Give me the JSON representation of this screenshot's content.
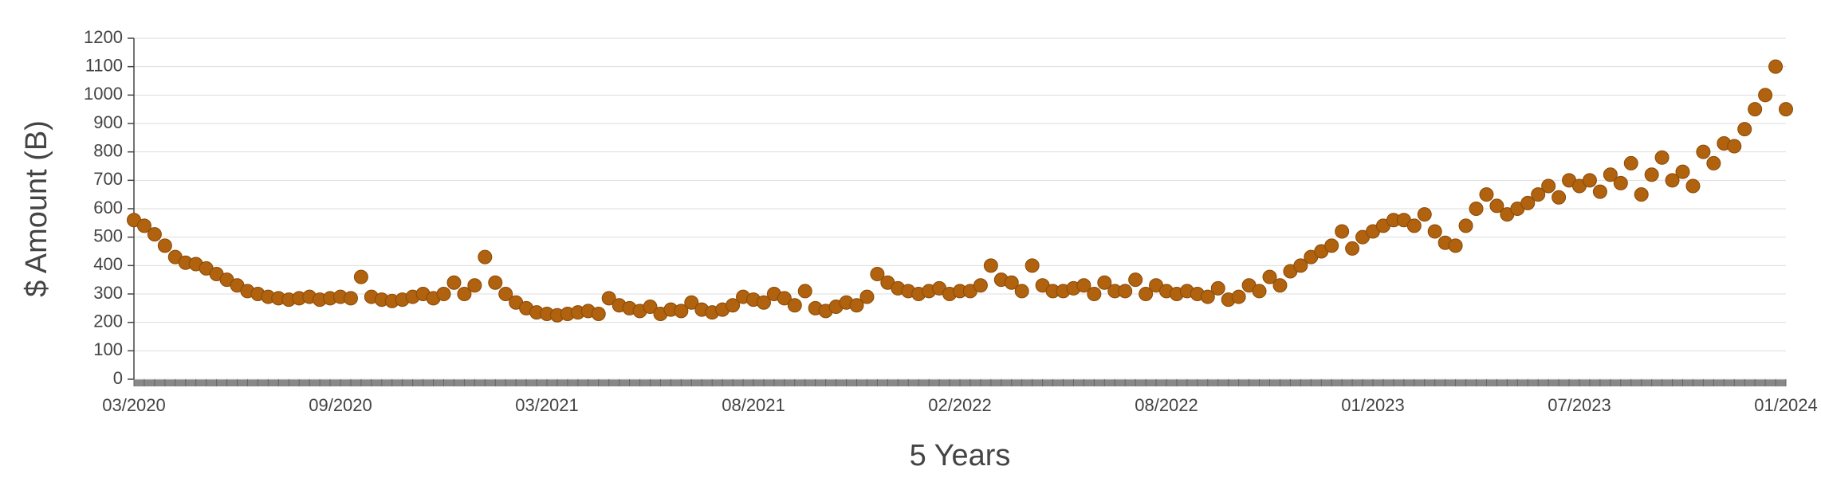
{
  "chart_data": {
    "type": "scatter",
    "x_label": "5 Years",
    "y_label": "$ Amount (B)",
    "color": "#b0620e",
    "grid": true,
    "ylim": [
      0,
      1200
    ],
    "yticks": [
      0,
      100,
      200,
      300,
      400,
      500,
      600,
      700,
      800,
      900,
      1000,
      1100,
      1200
    ],
    "categories": [
      "03/2020",
      null,
      null,
      null,
      null,
      null,
      null,
      null,
      null,
      null,
      null,
      null,
      null,
      null,
      null,
      null,
      null,
      null,
      null,
      null,
      "09/2020",
      null,
      null,
      null,
      null,
      null,
      null,
      null,
      null,
      null,
      null,
      null,
      null,
      null,
      null,
      null,
      null,
      null,
      null,
      null,
      "03/2021",
      null,
      null,
      null,
      null,
      null,
      null,
      null,
      null,
      null,
      null,
      null,
      null,
      null,
      null,
      null,
      null,
      null,
      null,
      null,
      "08/2021",
      null,
      null,
      null,
      null,
      null,
      null,
      null,
      null,
      null,
      null,
      null,
      null,
      null,
      null,
      null,
      null,
      null,
      null,
      null,
      "02/2022",
      null,
      null,
      null,
      null,
      null,
      null,
      null,
      null,
      null,
      null,
      null,
      null,
      null,
      null,
      null,
      null,
      null,
      null,
      null,
      "08/2022",
      null,
      null,
      null,
      null,
      null,
      null,
      null,
      null,
      null,
      null,
      null,
      null,
      null,
      null,
      null,
      null,
      null,
      null,
      null,
      "01/2023",
      null,
      null,
      null,
      null,
      null,
      null,
      null,
      null,
      null,
      null,
      null,
      null,
      null,
      null,
      null,
      null,
      null,
      null,
      null,
      "07/2023",
      null,
      null,
      null,
      null,
      null,
      null,
      null,
      null,
      null,
      null,
      null,
      null,
      null,
      null,
      null,
      null,
      null,
      null,
      null,
      "01/2024"
    ],
    "values": [
      560,
      540,
      510,
      470,
      430,
      410,
      405,
      390,
      370,
      350,
      330,
      310,
      300,
      290,
      285,
      280,
      285,
      290,
      280,
      285,
      290,
      285,
      360,
      290,
      280,
      275,
      280,
      290,
      300,
      285,
      300,
      340,
      300,
      330,
      430,
      340,
      300,
      270,
      250,
      235,
      230,
      225,
      230,
      235,
      240,
      230,
      285,
      260,
      250,
      240,
      255,
      230,
      245,
      240,
      270,
      245,
      235,
      245,
      260,
      290,
      280,
      270,
      300,
      285,
      260,
      310,
      250,
      240,
      255,
      270,
      260,
      290,
      370,
      340,
      320,
      310,
      300,
      310,
      320,
      300,
      310,
      310,
      330,
      400,
      350,
      340,
      310,
      400,
      330,
      310,
      310,
      320,
      330,
      300,
      340,
      310,
      310,
      350,
      300,
      330,
      310,
      300,
      310,
      300,
      290,
      320,
      280,
      290,
      330,
      310,
      360,
      330,
      380,
      400,
      430,
      450,
      470,
      520,
      460,
      500,
      520,
      540,
      560,
      560,
      540,
      580,
      520,
      480,
      470,
      540,
      600,
      650,
      610,
      580,
      600,
      620,
      650,
      680,
      640,
      700,
      680,
      700,
      660,
      720,
      690,
      760,
      650,
      720,
      780,
      700,
      730,
      680,
      800,
      760,
      830,
      820,
      880,
      950,
      1000,
      1100,
      950
    ]
  }
}
